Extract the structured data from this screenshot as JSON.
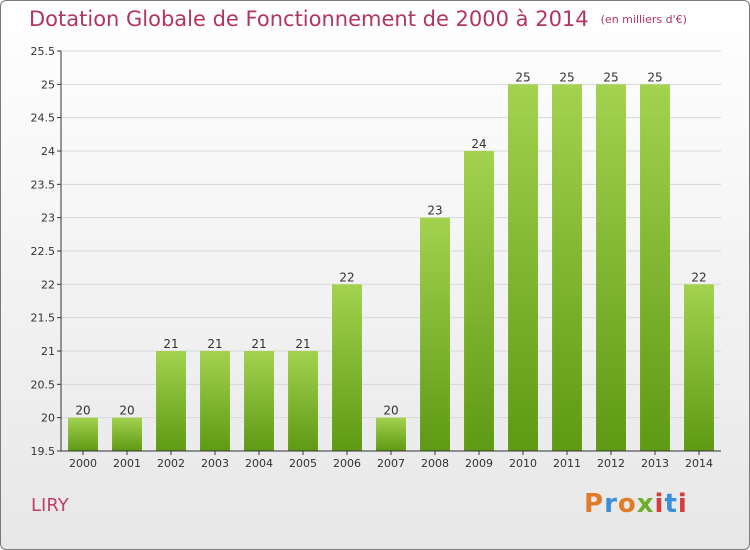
{
  "title": "Dotation Globale de Fonctionnement de 2000 à 2014",
  "unit_note": "(en milliers d'€)",
  "commune": "LIRY",
  "logo": {
    "text": "Proxiti",
    "colors": [
      "#e07b2a",
      "#3a8fd9",
      "#e07b2a",
      "#6fae2b",
      "#d93a3a",
      "#3a8fd9",
      "#d93a3a"
    ]
  },
  "colors": {
    "bar_top": "#a3d24f",
    "bar_bottom": "#5e9a14",
    "title": "#b23561",
    "grid": "#d8d8d8",
    "axis": "#333333"
  },
  "chart_data": {
    "type": "bar",
    "categories": [
      "2000",
      "2001",
      "2002",
      "2003",
      "2004",
      "2005",
      "2006",
      "2007",
      "2008",
      "2009",
      "2010",
      "2011",
      "2012",
      "2013",
      "2014"
    ],
    "values": [
      20,
      20,
      21,
      21,
      21,
      21,
      22,
      20,
      23,
      24,
      25,
      25,
      25,
      25,
      22
    ],
    "data_labels": [
      "20",
      "20",
      "21",
      "21",
      "21",
      "21",
      "22",
      "20",
      "23",
      "24",
      "25",
      "25",
      "25",
      "25",
      "22"
    ],
    "ylim": [
      19.5,
      25.5
    ],
    "yticks": [
      19.5,
      20,
      20.5,
      21,
      21.5,
      22,
      22.5,
      23,
      23.5,
      24,
      24.5,
      25,
      25.5
    ],
    "ytick_labels": [
      "19.5",
      "20",
      "20.5",
      "21",
      "21.5",
      "22",
      "22.5",
      "23",
      "23.5",
      "24",
      "24.5",
      "25",
      "25.5"
    ],
    "grid": true,
    "xlabel": "",
    "ylabel": ""
  }
}
